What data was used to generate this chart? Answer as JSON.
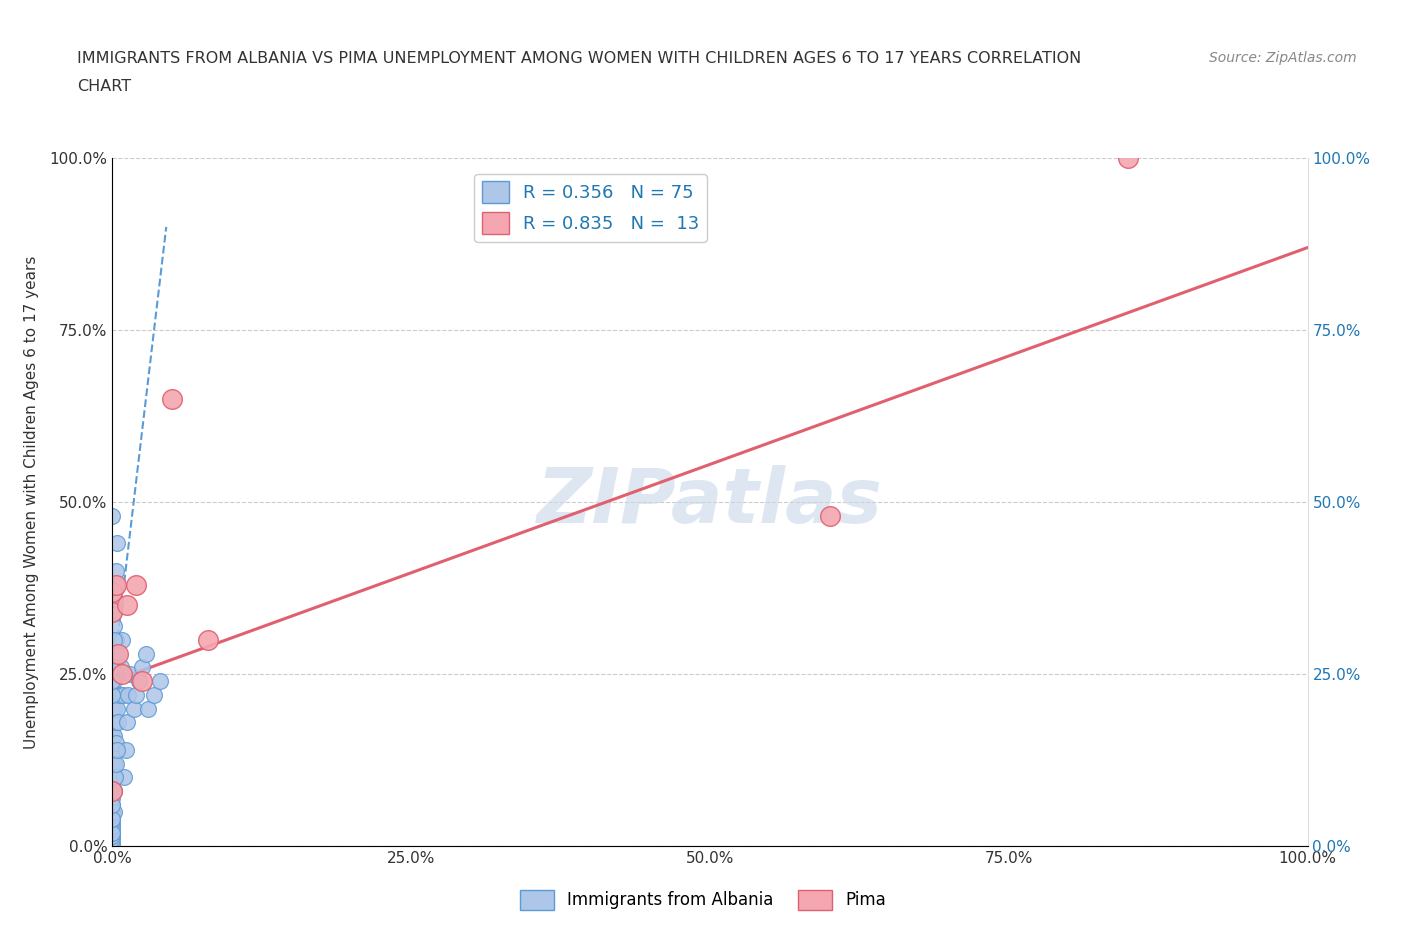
{
  "title_line1": "IMMIGRANTS FROM ALBANIA VS PIMA UNEMPLOYMENT AMONG WOMEN WITH CHILDREN AGES 6 TO 17 YEARS CORRELATION",
  "title_line2": "CHART",
  "source": "Source: ZipAtlas.com",
  "ylabel": "Unemployment Among Women with Children Ages 6 to 17 years",
  "xmin": 0.0,
  "xmax": 1.0,
  "ymin": 0.0,
  "ymax": 1.0,
  "xtick_labels": [
    "0.0%",
    "25.0%",
    "50.0%",
    "75.0%",
    "100.0%"
  ],
  "xtick_vals": [
    0.0,
    0.25,
    0.5,
    0.75,
    1.0
  ],
  "ytick_labels": [
    "0.0%",
    "25.0%",
    "50.0%",
    "75.0%",
    "100.0%"
  ],
  "ytick_vals": [
    0.0,
    0.25,
    0.5,
    0.75,
    1.0
  ],
  "albania_R": 0.356,
  "albania_N": 75,
  "pima_R": 0.835,
  "pima_N": 13,
  "albania_color": "#aec6e8",
  "albania_edge": "#5b9bd5",
  "pima_color": "#f4a7b0",
  "pima_edge": "#e06070",
  "trend_albania_color": "#5b9bd5",
  "trend_pima_color": "#e06070",
  "watermark": "ZIPatlas",
  "watermark_color": "#c8d8e8",
  "legend_color": "#1f77b4",
  "albania_scatter_x": [
    0.0,
    0.0,
    0.0,
    0.0,
    0.0,
    0.0,
    0.0,
    0.0,
    0.0,
    0.0,
    0.0,
    0.0,
    0.0,
    0.0,
    0.0,
    0.0,
    0.0,
    0.0,
    0.0,
    0.0,
    0.001,
    0.001,
    0.001,
    0.001,
    0.001,
    0.001,
    0.001,
    0.002,
    0.002,
    0.002,
    0.002,
    0.002,
    0.003,
    0.003,
    0.003,
    0.004,
    0.004,
    0.005,
    0.005,
    0.006,
    0.007,
    0.008,
    0.009,
    0.01,
    0.011,
    0.012,
    0.013,
    0.015,
    0.018,
    0.02,
    0.022,
    0.025,
    0.028,
    0.03,
    0.035,
    0.04,
    0.001,
    0.002,
    0.003,
    0.0,
    0.0,
    0.0,
    0.0,
    0.001,
    0.001,
    0.002,
    0.003,
    0.004,
    0.0,
    0.0,
    0.0,
    0.001,
    0.002,
    0.003,
    0.004
  ],
  "albania_scatter_y": [
    0.0,
    0.005,
    0.01,
    0.015,
    0.02,
    0.025,
    0.03,
    0.035,
    0.04,
    0.045,
    0.05,
    0.06,
    0.07,
    0.08,
    0.1,
    0.12,
    0.14,
    0.16,
    0.18,
    0.2,
    0.05,
    0.08,
    0.12,
    0.16,
    0.2,
    0.24,
    0.28,
    0.1,
    0.14,
    0.18,
    0.22,
    0.26,
    0.15,
    0.22,
    0.3,
    0.2,
    0.28,
    0.18,
    0.25,
    0.22,
    0.26,
    0.3,
    0.22,
    0.1,
    0.14,
    0.18,
    0.22,
    0.25,
    0.2,
    0.22,
    0.24,
    0.26,
    0.28,
    0.2,
    0.22,
    0.24,
    0.32,
    0.35,
    0.38,
    0.22,
    0.24,
    0.26,
    0.48,
    0.3,
    0.34,
    0.36,
    0.4,
    0.44,
    0.02,
    0.04,
    0.06,
    0.08,
    0.1,
    0.12,
    0.14
  ],
  "pima_scatter_x": [
    0.0,
    0.0,
    0.0,
    0.003,
    0.005,
    0.008,
    0.012,
    0.02,
    0.025,
    0.05,
    0.6,
    0.85,
    0.08
  ],
  "pima_scatter_y": [
    0.37,
    0.34,
    0.08,
    0.38,
    0.28,
    0.25,
    0.35,
    0.38,
    0.24,
    0.65,
    0.48,
    1.0,
    0.3
  ],
  "albania_trend_x": [
    0.0,
    0.045
  ],
  "albania_trend_y": [
    0.24,
    0.9
  ],
  "pima_trend_x": [
    0.0,
    1.0
  ],
  "pima_trend_y": [
    0.24,
    0.87
  ]
}
